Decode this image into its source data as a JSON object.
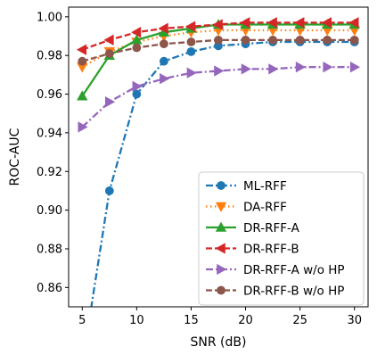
{
  "chart_data": {
    "type": "line",
    "title": "",
    "xlabel": "SNR (dB)",
    "ylabel": "ROC-AUC",
    "xlim": [
      3.75,
      31.25
    ],
    "ylim": [
      0.85,
      1.005
    ],
    "xticks": [
      5,
      10,
      15,
      20,
      25,
      30
    ],
    "yticks": [
      0.86,
      0.88,
      0.9,
      0.92,
      0.94,
      0.96,
      0.98,
      1.0
    ],
    "xtick_labels": [
      "5",
      "10",
      "15",
      "20",
      "25",
      "30"
    ],
    "ytick_labels": [
      "0.86",
      "0.88",
      "0.90",
      "0.92",
      "0.94",
      "0.96",
      "0.98",
      "1.00"
    ],
    "x": [
      5,
      7.5,
      10,
      12.5,
      15,
      17.5,
      20,
      22.5,
      25,
      27.5,
      30
    ],
    "grid": false,
    "legend_position": "lower-right",
    "series": [
      {
        "name": "ML-RFF",
        "color": "#1f77b4",
        "dash": "dashdot",
        "marker": "circle",
        "values": [
          0.82,
          0.91,
          0.96,
          0.977,
          0.982,
          0.985,
          0.986,
          0.987,
          0.987,
          0.987,
          0.987
        ]
      },
      {
        "name": "DA-RFF",
        "color": "#ff7f0e",
        "dash": "dotted",
        "marker": "triangle-down",
        "values": [
          0.974,
          0.982,
          0.987,
          0.99,
          0.992,
          0.993,
          0.993,
          0.993,
          0.993,
          0.993,
          0.993
        ]
      },
      {
        "name": "DR-RFF-A",
        "color": "#2ca02c",
        "dash": "solid",
        "marker": "triangle-up",
        "values": [
          0.959,
          0.98,
          0.988,
          0.992,
          0.994,
          0.996,
          0.996,
          0.996,
          0.996,
          0.996,
          0.996
        ]
      },
      {
        "name": "DR-RFF-B",
        "color": "#d62728",
        "dash": "dashed",
        "marker": "triangle-left",
        "values": [
          0.983,
          0.988,
          0.992,
          0.994,
          0.995,
          0.996,
          0.997,
          0.997,
          0.997,
          0.997,
          0.997
        ]
      },
      {
        "name": "DR-RFF-A w/o HP",
        "color": "#9467bd",
        "dash": "dashdot",
        "marker": "triangle-right",
        "values": [
          0.943,
          0.956,
          0.964,
          0.968,
          0.971,
          0.972,
          0.973,
          0.973,
          0.974,
          0.974,
          0.974
        ]
      },
      {
        "name": "DR-RFF-B w/o HP",
        "color": "#8c564b",
        "dash": "dashed",
        "marker": "circle",
        "values": [
          0.977,
          0.981,
          0.984,
          0.986,
          0.987,
          0.988,
          0.988,
          0.988,
          0.988,
          0.988,
          0.988
        ]
      }
    ]
  }
}
